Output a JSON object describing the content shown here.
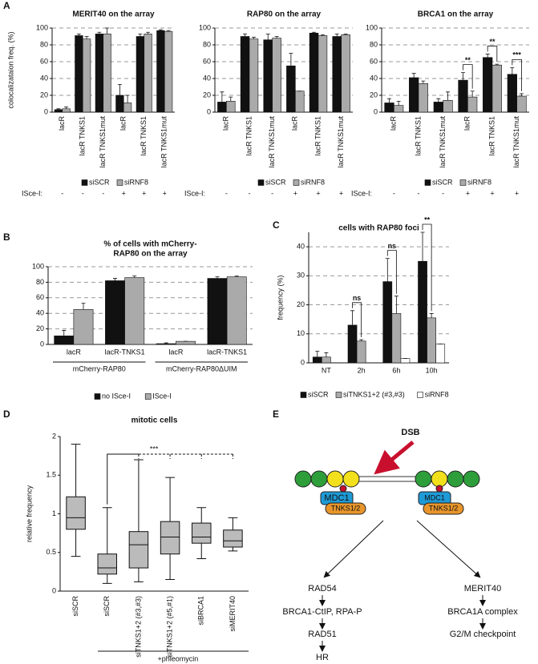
{
  "panels": [
    "A",
    "B",
    "C",
    "D",
    "E"
  ],
  "chart_data": [
    {
      "type": "bar",
      "title": "MERIT40 on the array",
      "y_label": "colocalizataion freq. (%)",
      "ylim": [
        0,
        100
      ],
      "yticks": [
        0,
        20,
        40,
        60,
        80,
        100
      ],
      "grid": true,
      "categories": [
        "lacR",
        "lacR TNKS1",
        "lacR TNKS1mut",
        "lacR",
        "lacR TNKS1",
        "lacR TNKS1mut"
      ],
      "series": [
        {
          "name": "siSCR",
          "color": "#111111",
          "values": [
            3,
            91,
            93,
            20,
            90,
            97
          ],
          "errors": [
            1,
            2,
            2,
            13,
            3,
            1
          ]
        },
        {
          "name": "siRNF8",
          "color": "#aaaaaa",
          "values": [
            4,
            87,
            93,
            11,
            93,
            96
          ],
          "errors": [
            2,
            3,
            7,
            9,
            2,
            1
          ]
        }
      ],
      "row_label": "ISce-I:",
      "row": [
        "-",
        "-",
        "-",
        "+",
        "+",
        "+"
      ]
    },
    {
      "type": "bar",
      "title": "RAP80 on the array",
      "ylim": [
        0,
        100
      ],
      "yticks": [
        0,
        20,
        40,
        60,
        80,
        100
      ],
      "grid": true,
      "categories": [
        "lacR",
        "lacR TNKS1",
        "lacR TNKS1mut",
        "lacR",
        "lacR TNKS1",
        "lacR TNKS1mut"
      ],
      "series": [
        {
          "name": "siSCR",
          "color": "#111111",
          "values": [
            12,
            90,
            86,
            55,
            94,
            90
          ],
          "errors": [
            12,
            3,
            7,
            15,
            1,
            3
          ]
        },
        {
          "name": "siRNF8",
          "color": "#aaaaaa",
          "values": [
            13,
            87,
            88,
            25,
            91,
            92
          ],
          "errors": [
            5,
            2,
            2,
            0,
            1,
            1
          ]
        }
      ],
      "row_label": "ISce-I:",
      "row": [
        "-",
        "-",
        "-",
        "+",
        "+",
        "+"
      ]
    },
    {
      "type": "bar",
      "title": "BRCA1 on the array",
      "ylim": [
        0,
        100
      ],
      "yticks": [
        0,
        20,
        40,
        60,
        80,
        100
      ],
      "grid": true,
      "categories": [
        "lacR",
        "lacR TNKS1",
        "lacR TNKS1mut",
        "lacR",
        "lacR TNKS1",
        "lacR TNKS1mut"
      ],
      "series": [
        {
          "name": "siSCR",
          "color": "#111111",
          "values": [
            11,
            41,
            12,
            38,
            65,
            45
          ],
          "errors": [
            5,
            5,
            4,
            9,
            4,
            8
          ]
        },
        {
          "name": "siRNF8",
          "color": "#aaaaaa",
          "values": [
            8,
            34,
            14,
            18,
            56,
            19
          ],
          "errors": [
            5,
            3,
            10,
            7,
            1,
            3
          ]
        }
      ],
      "significance": [
        null,
        null,
        null,
        "**",
        "**",
        "***"
      ],
      "row_label": "ISce-I:",
      "row": [
        "-",
        "-",
        "-",
        "+",
        "+",
        "+"
      ]
    },
    {
      "type": "bar",
      "title": [
        "% of cells with mCherry-",
        "RAP80 on the array"
      ],
      "ylim": [
        0,
        100
      ],
      "yticks": [
        0,
        20,
        40,
        60,
        80,
        100
      ],
      "grid": true,
      "categories": [
        "lacR",
        "lacR-TNKS1",
        "lacR",
        "lacR-TNKS1"
      ],
      "groups": [
        "mCherry-RAP80",
        "mCherry-RAP80ΔUIM"
      ],
      "series": [
        {
          "name": "no ISce-I",
          "color": "#111111",
          "values": [
            11,
            82,
            1,
            85
          ],
          "errors": [
            7,
            3,
            1,
            2
          ]
        },
        {
          "name": "ISce-I",
          "color": "#aaaaaa",
          "values": [
            45,
            86,
            4,
            87
          ],
          "errors": [
            8,
            2,
            0,
            1
          ]
        }
      ]
    },
    {
      "type": "bar",
      "title": "cells with RAP80 foci",
      "y_label": "frequency (%)",
      "ylim": [
        0,
        45
      ],
      "yticks": [
        0,
        10,
        20,
        30,
        40
      ],
      "grid": true,
      "categories": [
        "NT",
        "2h",
        "6h",
        "10h"
      ],
      "series": [
        {
          "name": "siSCR",
          "color": "#111111",
          "values": [
            2,
            13,
            28,
            35
          ],
          "errors": [
            2,
            5,
            8,
            10
          ]
        },
        {
          "name": "siTNKS1+2 (#3,#3)",
          "color": "#aaaaaa",
          "values": [
            2,
            7.5,
            17,
            15.5
          ],
          "errors": [
            1.5,
            0.5,
            6,
            1.5
          ]
        },
        {
          "name": "siRNF8",
          "color": "#ffffff",
          "values": [
            null,
            null,
            1.5,
            6.5
          ],
          "errors": [
            null,
            null,
            0,
            0
          ]
        }
      ],
      "significance": [
        null,
        "ns",
        "ns",
        "**"
      ]
    },
    {
      "type": "box",
      "title": "mitotic cells",
      "y_label": "relative frequency",
      "ylim": [
        0,
        2
      ],
      "yticks": [
        0,
        0.5,
        1,
        1.5,
        2
      ],
      "color": "#bbbbbb",
      "categories": [
        "siSCR",
        "siSCR",
        "siTNKS1+2 (#3,#3)",
        "siTNKS1+2 (#5,#1)",
        "siBRCA1",
        "siMERIT40"
      ],
      "boxes": [
        {
          "min": 0.45,
          "q1": 0.8,
          "median": 0.95,
          "q3": 1.22,
          "max": 1.9
        },
        {
          "min": 0.1,
          "q1": 0.22,
          "median": 0.3,
          "q3": 0.48,
          "max": 1.08
        },
        {
          "min": 0.12,
          "q1": 0.3,
          "median": 0.6,
          "q3": 0.77,
          "max": 1.7
        },
        {
          "min": 0.15,
          "q1": 0.48,
          "median": 0.7,
          "q3": 0.9,
          "max": 1.47
        },
        {
          "min": 0.42,
          "q1": 0.62,
          "median": 0.7,
          "q3": 0.88,
          "max": 1.08
        },
        {
          "min": 0.52,
          "q1": 0.57,
          "median": 0.65,
          "q3": 0.79,
          "max": 0.95
        }
      ],
      "annotation": "***",
      "group_label": "+phleomycin"
    }
  ],
  "diagram": {
    "dsb": "DSB",
    "mdc1": "MDC1",
    "tnks": "TNKS1/2",
    "left": [
      "RAD54",
      "BRCA1-CtIP, RPA-P",
      "RAD51",
      "HR"
    ],
    "right": [
      "MERIT40",
      "BRCA1A complex",
      "G2/M checkpoint"
    ]
  }
}
